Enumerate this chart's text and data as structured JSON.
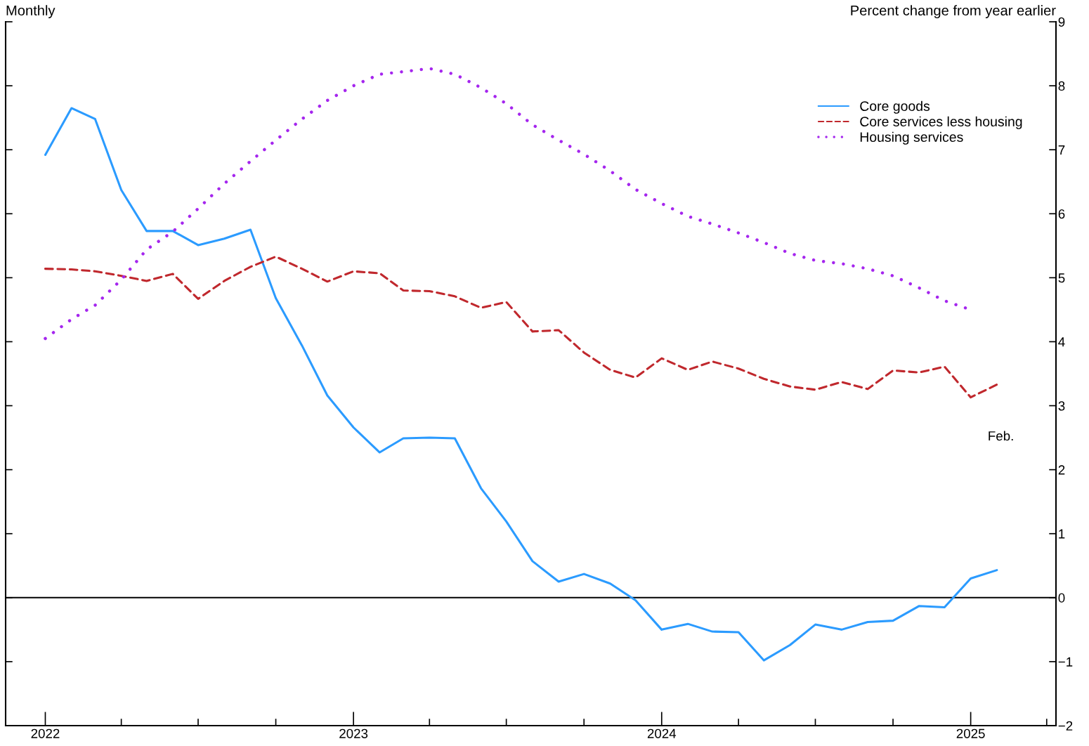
{
  "chart_data": {
    "type": "line",
    "ylabel": "Percent change from year earlier",
    "annotations": [
      "Monthly",
      "Feb."
    ],
    "x": [
      "2022-01",
      "2022-02",
      "2022-03",
      "2022-04",
      "2022-05",
      "2022-06",
      "2022-07",
      "2022-08",
      "2022-09",
      "2022-10",
      "2022-11",
      "2022-12",
      "2023-01",
      "2023-02",
      "2023-03",
      "2023-04",
      "2023-05",
      "2023-06",
      "2023-07",
      "2023-08",
      "2023-09",
      "2023-10",
      "2023-11",
      "2023-12",
      "2024-01",
      "2024-02",
      "2024-03",
      "2024-04",
      "2024-05",
      "2024-06",
      "2024-07",
      "2024-08",
      "2024-09",
      "2024-10",
      "2024-11",
      "2024-12",
      "2025-01",
      "2025-02"
    ],
    "series": [
      {
        "name": "Core goods",
        "color": "#2b9bff",
        "line_style": "solid",
        "values": [
          6.92,
          7.65,
          7.48,
          6.37,
          5.73,
          5.73,
          5.51,
          5.61,
          5.75,
          4.68,
          3.94,
          3.16,
          2.66,
          2.27,
          2.49,
          2.5,
          2.49,
          1.71,
          1.19,
          0.57,
          0.25,
          0.37,
          0.22,
          -0.04,
          -0.5,
          -0.41,
          -0.53,
          -0.54,
          -0.98,
          -0.74,
          -0.42,
          -0.5,
          -0.38,
          -0.36,
          -0.13,
          -0.15,
          0.3,
          0.43
        ]
      },
      {
        "name": "Core services less housing",
        "color": "#c0282d",
        "line_style": "dashed",
        "values": [
          5.14,
          5.13,
          5.1,
          5.03,
          4.95,
          5.06,
          4.67,
          4.95,
          5.17,
          5.33,
          5.14,
          4.94,
          5.1,
          5.07,
          4.8,
          4.79,
          4.71,
          4.53,
          4.62,
          4.16,
          4.18,
          3.83,
          3.56,
          3.44,
          3.74,
          3.56,
          3.69,
          3.58,
          3.42,
          3.3,
          3.25,
          3.37,
          3.26,
          3.55,
          3.52,
          3.61,
          3.13,
          3.33
        ]
      },
      {
        "name": "Housing services",
        "color": "#a526ee",
        "line_style": "dotted",
        "values": [
          4.05,
          4.35,
          4.57,
          4.97,
          5.44,
          5.72,
          6.08,
          6.47,
          6.82,
          7.15,
          7.48,
          7.77,
          8.0,
          8.18,
          8.22,
          8.27,
          8.18,
          7.97,
          7.72,
          7.39,
          7.15,
          6.93,
          6.67,
          6.38,
          6.16,
          5.96,
          5.84,
          5.7,
          5.55,
          5.38,
          5.27,
          5.22,
          5.14,
          5.03,
          4.84,
          4.64,
          4.5,
          null
        ]
      }
    ],
    "xlim": [
      "2021-11-15",
      "2025-04-12"
    ],
    "xticks": [
      {
        "value": "2022-01",
        "label": "2022"
      },
      {
        "value": "2022-04",
        "label": null
      },
      {
        "value": "2022-07",
        "label": null
      },
      {
        "value": "2022-10",
        "label": null
      },
      {
        "value": "2023-01",
        "label": "2023"
      },
      {
        "value": "2023-04",
        "label": null
      },
      {
        "value": "2023-07",
        "label": null
      },
      {
        "value": "2023-10",
        "label": null
      },
      {
        "value": "2024-01",
        "label": "2024"
      },
      {
        "value": "2024-04",
        "label": null
      },
      {
        "value": "2024-07",
        "label": null
      },
      {
        "value": "2024-10",
        "label": null
      },
      {
        "value": "2025-01",
        "label": "2025"
      },
      {
        "value": "2025-04",
        "label": null
      }
    ],
    "ylim": [
      -2,
      9
    ],
    "yticks": [
      {
        "value": -2,
        "label": "−2"
      },
      {
        "value": -1,
        "label": "−1"
      },
      0,
      1,
      2,
      3,
      4,
      5,
      6,
      7,
      8,
      9
    ],
    "ref_lines": [
      {
        "axis": "y",
        "value": 0,
        "color": "#000000"
      }
    ],
    "grid": false,
    "legend": "top right",
    "marker": "none"
  }
}
